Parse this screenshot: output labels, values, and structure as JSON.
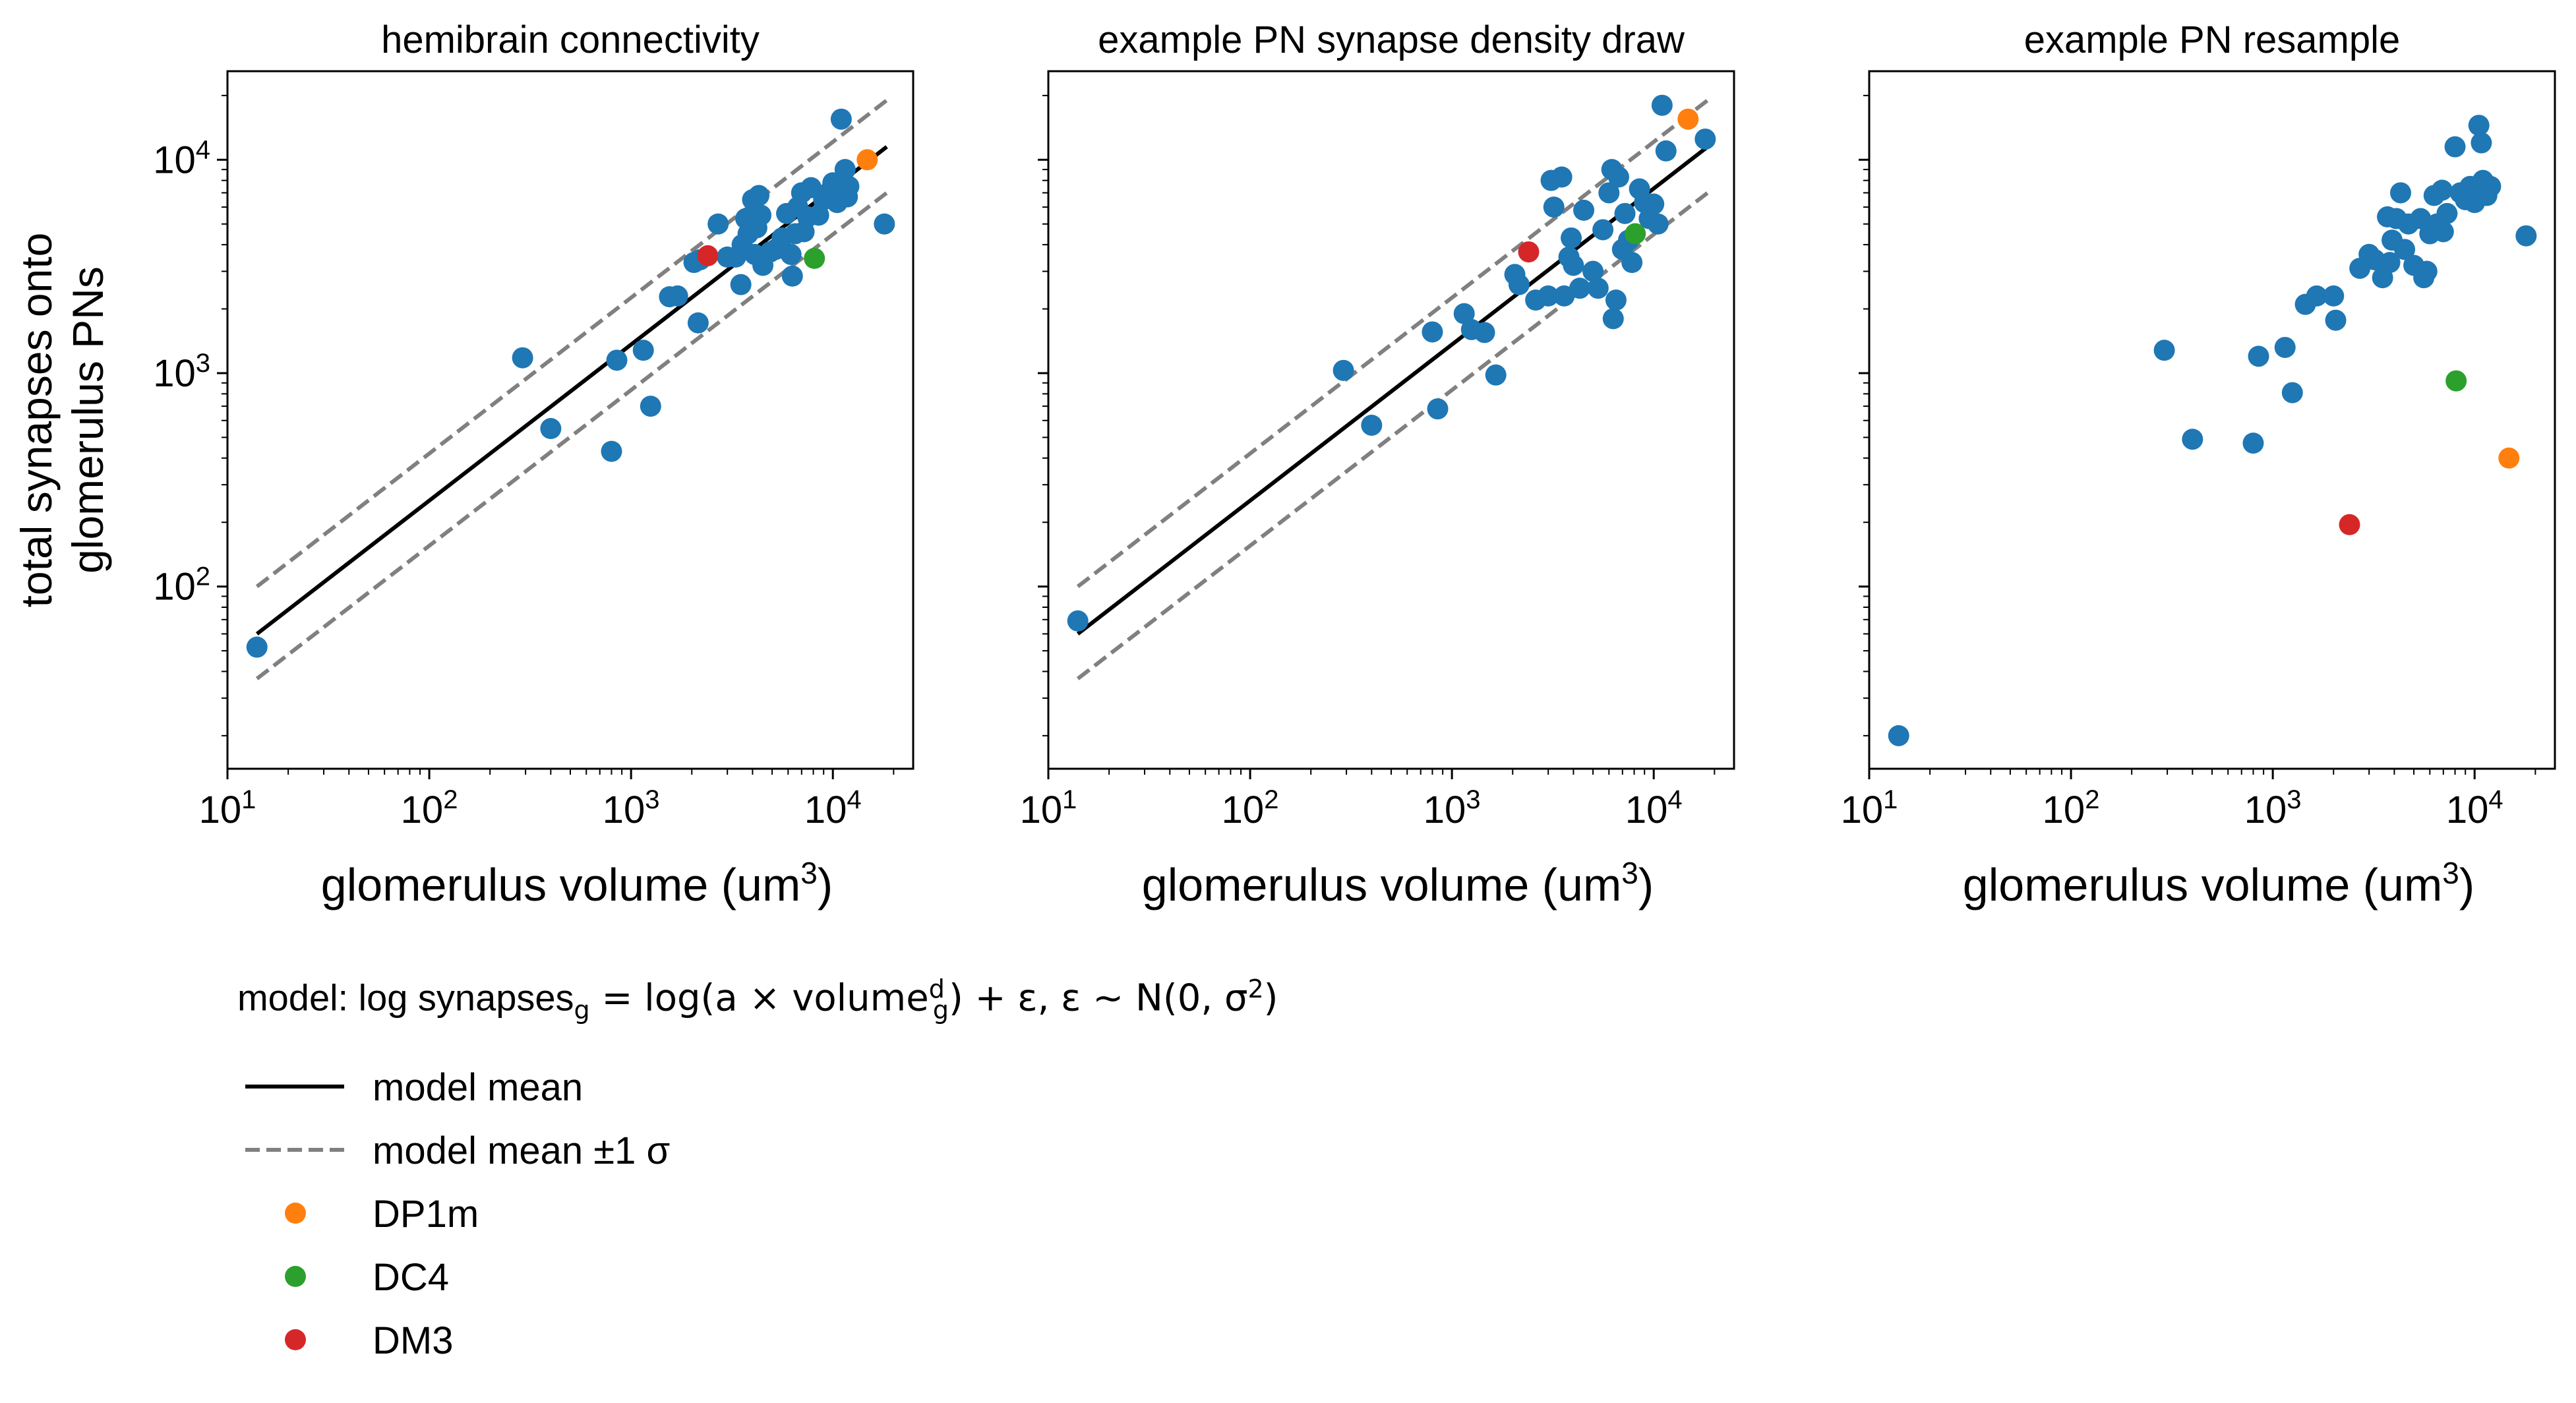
{
  "figure": {
    "model_label": {
      "prefix": "model: log synapses",
      "sub_g": "g",
      "mid": " = log(a × volume",
      "sup_d": "d",
      "sub_g2": "g",
      "suffix": ") + ε, ε ~ N(0, σ",
      "sup_2": "2",
      "end": ")"
    },
    "legend": [
      {
        "label": "model mean",
        "kind": "line",
        "color": "#000000"
      },
      {
        "label": "model mean ±1 σ",
        "kind": "dashed",
        "color": "#808080"
      },
      {
        "label": "DP1m",
        "kind": "marker",
        "color": "#ff7f0e"
      },
      {
        "label": "DC4",
        "kind": "marker",
        "color": "#2ca02c"
      },
      {
        "label": "DM3",
        "kind": "marker",
        "color": "#d62728"
      }
    ]
  },
  "chart_data": [
    {
      "type": "scatter",
      "title": "hemibrain connectivity",
      "xlabel": "glomerulus volume (um",
      "xlabel_sup": "3",
      "xlabel_end": ")",
      "ylabel": [
        "total synapses onto",
        "glomerulus PNs"
      ],
      "xscale": "log",
      "yscale": "log",
      "xlim": [
        10,
        25000
      ],
      "ylim": [
        14,
        26000
      ],
      "xticks": [
        {
          "label": "10",
          "sup": "1",
          "value": 10
        },
        {
          "label": "10",
          "sup": "2",
          "value": 100
        },
        {
          "label": "10",
          "sup": "3",
          "value": 1000
        },
        {
          "label": "10",
          "sup": "4",
          "value": 10000
        }
      ],
      "yticks": [
        {
          "label": "10",
          "sup": "2",
          "value": 100
        },
        {
          "label": "10",
          "sup": "3",
          "value": 1000
        },
        {
          "label": "10",
          "sup": "4",
          "value": 10000
        }
      ],
      "fit": {
        "mean": [
          [
            14,
            60
          ],
          [
            18500,
            11500
          ]
        ],
        "upper": [
          [
            14,
            100
          ],
          [
            18500,
            19000
          ]
        ],
        "lower": [
          [
            14,
            37
          ],
          [
            18500,
            7000
          ]
        ]
      },
      "points": [
        [
          14,
          52
        ],
        [
          290,
          1180
        ],
        [
          400,
          550
        ],
        [
          800,
          430
        ],
        [
          850,
          1150
        ],
        [
          1150,
          1280
        ],
        [
          1250,
          700
        ],
        [
          1550,
          2280
        ],
        [
          1700,
          2300
        ],
        [
          2050,
          3300
        ],
        [
          2150,
          1720
        ],
        [
          2200,
          3400
        ],
        [
          2700,
          5000
        ],
        [
          3000,
          3500
        ],
        [
          3300,
          3500
        ],
        [
          3500,
          2600
        ],
        [
          3550,
          4000
        ],
        [
          3700,
          5300
        ],
        [
          3800,
          4500
        ],
        [
          4000,
          6500
        ],
        [
          4100,
          3600
        ],
        [
          4200,
          4800
        ],
        [
          4300,
          6800
        ],
        [
          4400,
          5500
        ],
        [
          4500,
          3200
        ],
        [
          4900,
          3700
        ],
        [
          5200,
          3800
        ],
        [
          5600,
          4300
        ],
        [
          5900,
          5600
        ],
        [
          6200,
          3600
        ],
        [
          6300,
          2850
        ],
        [
          6500,
          4500
        ],
        [
          6700,
          6000
        ],
        [
          7000,
          7000
        ],
        [
          7200,
          4600
        ],
        [
          7500,
          5400
        ],
        [
          7800,
          7400
        ],
        [
          8500,
          5500
        ],
        [
          9000,
          6500
        ],
        [
          9500,
          7000
        ],
        [
          10000,
          7800
        ],
        [
          10500,
          6300
        ],
        [
          11000,
          15500
        ],
        [
          11500,
          9000
        ],
        [
          11800,
          6700
        ],
        [
          12000,
          7500
        ],
        [
          18000,
          5000
        ]
      ],
      "highlights": [
        {
          "name": "DP1m",
          "x": 14800,
          "y": 10000,
          "color": "#ff7f0e"
        },
        {
          "name": "DC4",
          "x": 8100,
          "y": 3450,
          "color": "#2ca02c"
        },
        {
          "name": "DM3",
          "x": 2400,
          "y": 3550,
          "color": "#d62728"
        }
      ]
    },
    {
      "type": "scatter",
      "title": "example PN synapse density draw",
      "xlabel": "glomerulus volume (um",
      "xlabel_sup": "3",
      "xlabel_end": ")",
      "ylabel": [],
      "xscale": "log",
      "yscale": "log",
      "xlim": [
        10,
        25000
      ],
      "ylim": [
        14,
        26000
      ],
      "xticks": [
        {
          "label": "10",
          "sup": "1",
          "value": 10
        },
        {
          "label": "10",
          "sup": "2",
          "value": 100
        },
        {
          "label": "10",
          "sup": "3",
          "value": 1000
        },
        {
          "label": "10",
          "sup": "4",
          "value": 10000
        }
      ],
      "yticks": [],
      "fit": {
        "mean": [
          [
            14,
            60
          ],
          [
            18500,
            11500
          ]
        ],
        "upper": [
          [
            14,
            100
          ],
          [
            18500,
            19000
          ]
        ],
        "lower": [
          [
            14,
            37
          ],
          [
            18500,
            7000
          ]
        ]
      },
      "points": [
        [
          14,
          69
        ],
        [
          290,
          1030
        ],
        [
          400,
          570
        ],
        [
          800,
          1560
        ],
        [
          850,
          680
        ],
        [
          1150,
          1900
        ],
        [
          1250,
          1600
        ],
        [
          1450,
          1550
        ],
        [
          1650,
          980
        ],
        [
          2050,
          2900
        ],
        [
          2150,
          2600
        ],
        [
          2600,
          2200
        ],
        [
          3000,
          2300
        ],
        [
          3100,
          8000
        ],
        [
          3200,
          6000
        ],
        [
          3500,
          8300
        ],
        [
          3600,
          2300
        ],
        [
          3800,
          3500
        ],
        [
          3900,
          4300
        ],
        [
          4000,
          3200
        ],
        [
          4300,
          2500
        ],
        [
          4500,
          5800
        ],
        [
          5000,
          3000
        ],
        [
          5300,
          2500
        ],
        [
          5600,
          4700
        ],
        [
          6000,
          7000
        ],
        [
          6200,
          9000
        ],
        [
          6300,
          1800
        ],
        [
          6500,
          2200
        ],
        [
          6700,
          8300
        ],
        [
          7000,
          3800
        ],
        [
          7200,
          5600
        ],
        [
          7500,
          4200
        ],
        [
          7800,
          3300
        ],
        [
          8500,
          7300
        ],
        [
          9000,
          6300
        ],
        [
          9500,
          5300
        ],
        [
          10000,
          6200
        ],
        [
          10500,
          5000
        ],
        [
          11000,
          18000
        ],
        [
          11500,
          11000
        ],
        [
          18000,
          12500
        ]
      ],
      "highlights": [
        {
          "name": "DP1m",
          "x": 14800,
          "y": 15500,
          "color": "#ff7f0e"
        },
        {
          "name": "DC4",
          "x": 8100,
          "y": 4500,
          "color": "#2ca02c"
        },
        {
          "name": "DM3",
          "x": 2400,
          "y": 3700,
          "color": "#d62728"
        }
      ]
    },
    {
      "type": "scatter",
      "title": "example PN resample",
      "xlabel": "glomerulus volume (um",
      "xlabel_sup": "3",
      "xlabel_end": ")",
      "ylabel": [],
      "xscale": "log",
      "yscale": "log",
      "xlim": [
        10,
        25000
      ],
      "ylim": [
        14,
        26000
      ],
      "xticks": [
        {
          "label": "10",
          "sup": "1",
          "value": 10
        },
        {
          "label": "10",
          "sup": "2",
          "value": 100
        },
        {
          "label": "10",
          "sup": "3",
          "value": 1000
        },
        {
          "label": "10",
          "sup": "4",
          "value": 10000
        }
      ],
      "yticks": [],
      "fit": null,
      "points": [
        [
          14,
          20
        ],
        [
          290,
          1280
        ],
        [
          400,
          490
        ],
        [
          800,
          470
        ],
        [
          850,
          1200
        ],
        [
          1150,
          1320
        ],
        [
          1250,
          810
        ],
        [
          1450,
          2100
        ],
        [
          1650,
          2300
        ],
        [
          2000,
          2300
        ],
        [
          2050,
          1770
        ],
        [
          2700,
          3100
        ],
        [
          3000,
          3600
        ],
        [
          3200,
          3400
        ],
        [
          3500,
          2800
        ],
        [
          3700,
          5400
        ],
        [
          3800,
          3300
        ],
        [
          3900,
          4200
        ],
        [
          4100,
          5300
        ],
        [
          4300,
          7000
        ],
        [
          4500,
          3800
        ],
        [
          4700,
          5000
        ],
        [
          5000,
          3200
        ],
        [
          5400,
          5300
        ],
        [
          5600,
          2800
        ],
        [
          5800,
          3000
        ],
        [
          6000,
          4500
        ],
        [
          6300,
          6800
        ],
        [
          6500,
          5000
        ],
        [
          6900,
          7200
        ],
        [
          7000,
          4600
        ],
        [
          7300,
          5600
        ],
        [
          8000,
          11500
        ],
        [
          8500,
          7000
        ],
        [
          9000,
          6500
        ],
        [
          9500,
          7500
        ],
        [
          10000,
          6300
        ],
        [
          10500,
          14500
        ],
        [
          10800,
          12000
        ],
        [
          11000,
          8000
        ],
        [
          11500,
          6800
        ],
        [
          12000,
          7500
        ],
        [
          18000,
          4400
        ]
      ],
      "highlights": [
        {
          "name": "DP1m",
          "x": 14800,
          "y": 400,
          "color": "#ff7f0e"
        },
        {
          "name": "DC4",
          "x": 8100,
          "y": 920,
          "color": "#2ca02c"
        },
        {
          "name": "DM3",
          "x": 2400,
          "y": 195,
          "color": "#d62728"
        }
      ]
    }
  ]
}
